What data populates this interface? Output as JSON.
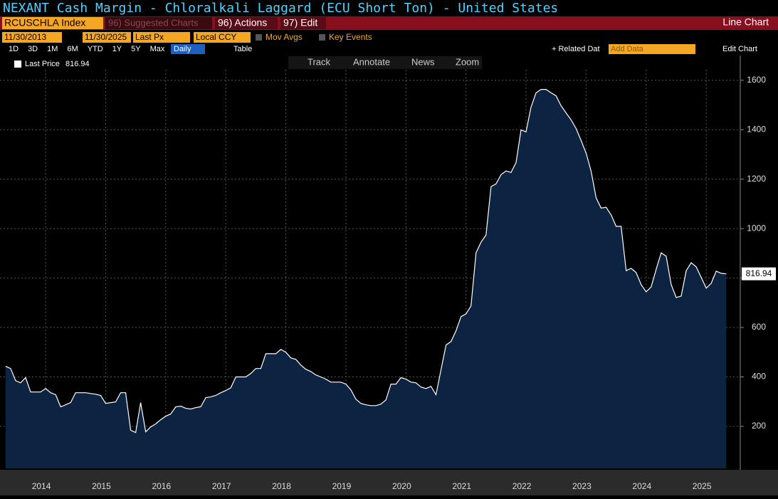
{
  "ui": {
    "title": "NEXANT Cash Margin - Chloralkali Laggard (ECU Short Ton) - United States",
    "ticker": "RCUSCHLA Index",
    "menu": [
      "96) Suggested Charts",
      "96) Actions",
      "97) Edit"
    ],
    "chart_kind": "Line Chart",
    "start_date": "11/30/2013",
    "end_date": "11/30/2025",
    "field": "Last Px",
    "currency": "Local CCY",
    "options": [
      "Mov Avgs",
      "Key Events"
    ],
    "ranges": [
      "1D",
      "3D",
      "1M",
      "6M",
      "YTD",
      "1Y",
      "5Y",
      "Max"
    ],
    "period": "Daily",
    "table": "Table",
    "related": "+ Related Dat",
    "add_data": "Add Data",
    "edit_chart": "Edit Chart",
    "tools": [
      "Track",
      "Annotate",
      "News",
      "Zoom"
    ]
  },
  "chart_data": {
    "type": "area",
    "series": [
      {
        "name": "Last Price",
        "color": "#ffffff",
        "fill": "#0c2342",
        "values": [
          443,
          434,
          385,
          376,
          397,
          339,
          339,
          339,
          353,
          336,
          328,
          279,
          287,
          296,
          336,
          336,
          336,
          333,
          330,
          325,
          293,
          296,
          299,
          336,
          336,
          184,
          175,
          296,
          178,
          198,
          210,
          227,
          241,
          250,
          279,
          282,
          273,
          270,
          276,
          279,
          316,
          319,
          325,
          336,
          345,
          356,
          400,
          400,
          400,
          414,
          434,
          434,
          494,
          494,
          494,
          511,
          500,
          477,
          471,
          448,
          431,
          422,
          408,
          400,
          391,
          379,
          379,
          379,
          371,
          348,
          310,
          293,
          287,
          284,
          284,
          290,
          307,
          371,
          371,
          397,
          391,
          379,
          376,
          359,
          353,
          362,
          328,
          428,
          529,
          543,
          586,
          644,
          655,
          687,
          902,
          945,
          974,
          1170,
          1181,
          1218,
          1233,
          1227,
          1267,
          1399,
          1391,
          1491,
          1549,
          1563,
          1563,
          1549,
          1537,
          1497,
          1468,
          1440,
          1405,
          1356,
          1305,
          1233,
          1124,
          1083,
          1086,
          1055,
          1009,
          1009,
          830,
          839,
          822,
          773,
          744,
          764,
          836,
          902,
          888,
          773,
          721,
          727,
          830,
          862,
          845,
          802,
          759,
          779,
          828,
          819,
          816.94
        ]
      }
    ],
    "x": [
      2013.833,
      2013.917,
      2014,
      2014.083,
      2014.167,
      2014.25,
      2014.333,
      2014.417,
      2014.5,
      2014.583,
      2014.667,
      2014.75,
      2014.833,
      2014.917,
      2015,
      2015.083,
      2015.167,
      2015.25,
      2015.333,
      2015.417,
      2015.5,
      2015.583,
      2015.667,
      2015.75,
      2015.833,
      2015.917,
      2016,
      2016.083,
      2016.167,
      2016.25,
      2016.333,
      2016.417,
      2016.5,
      2016.583,
      2016.667,
      2016.75,
      2016.833,
      2016.917,
      2017,
      2017.083,
      2017.167,
      2017.25,
      2017.333,
      2017.417,
      2017.5,
      2017.583,
      2017.667,
      2017.75,
      2017.833,
      2017.917,
      2018,
      2018.083,
      2018.167,
      2018.25,
      2018.333,
      2018.417,
      2018.5,
      2018.583,
      2018.667,
      2018.75,
      2018.833,
      2018.917,
      2019,
      2019.083,
      2019.167,
      2019.25,
      2019.333,
      2019.417,
      2019.5,
      2019.583,
      2019.667,
      2019.75,
      2019.833,
      2019.917,
      2020,
      2020.083,
      2020.167,
      2020.25,
      2020.333,
      2020.417,
      2020.5,
      2020.583,
      2020.667,
      2020.75,
      2020.833,
      2020.917,
      2021,
      2021.083,
      2021.167,
      2021.25,
      2021.333,
      2021.417,
      2021.5,
      2021.583,
      2021.667,
      2021.75,
      2021.833,
      2021.917,
      2022,
      2022.083,
      2022.167,
      2022.25,
      2022.333,
      2022.417,
      2022.5,
      2022.583,
      2022.667,
      2022.75,
      2022.833,
      2022.917,
      2023,
      2023.083,
      2023.167,
      2023.25,
      2023.333,
      2023.417,
      2023.5,
      2023.583,
      2023.667,
      2023.75,
      2023.833,
      2023.917,
      2024,
      2024.083,
      2024.167,
      2024.25,
      2024.333,
      2024.417,
      2024.5,
      2024.583,
      2024.667,
      2024.75,
      2024.833,
      2024.917,
      2025,
      2025.083,
      2025.167,
      2025.25,
      2025.333,
      2025.417,
      2025.5,
      2025.583,
      2025.667,
      2025.75,
      2025.833
    ],
    "xlim": [
      2013.8,
      2026.15
    ],
    "xticks": [
      {
        "value": 2014.5,
        "label": "2014"
      },
      {
        "value": 2015.5,
        "label": "2015"
      },
      {
        "value": 2016.5,
        "label": "2016"
      },
      {
        "value": 2017.5,
        "label": "2017"
      },
      {
        "value": 2018.5,
        "label": "2018"
      },
      {
        "value": 2019.5,
        "label": "2019"
      },
      {
        "value": 2020.5,
        "label": "2020"
      },
      {
        "value": 2021.5,
        "label": "2021"
      },
      {
        "value": 2022.5,
        "label": "2022"
      },
      {
        "value": 2023.5,
        "label": "2023"
      },
      {
        "value": 2024.5,
        "label": "2024"
      },
      {
        "value": 2025.5,
        "label": "2025"
      }
    ],
    "ylim": [
      30,
      1700
    ],
    "yticks": [
      200,
      400,
      600,
      800,
      1000,
      1200,
      1400,
      1600
    ],
    "grid": true
  }
}
